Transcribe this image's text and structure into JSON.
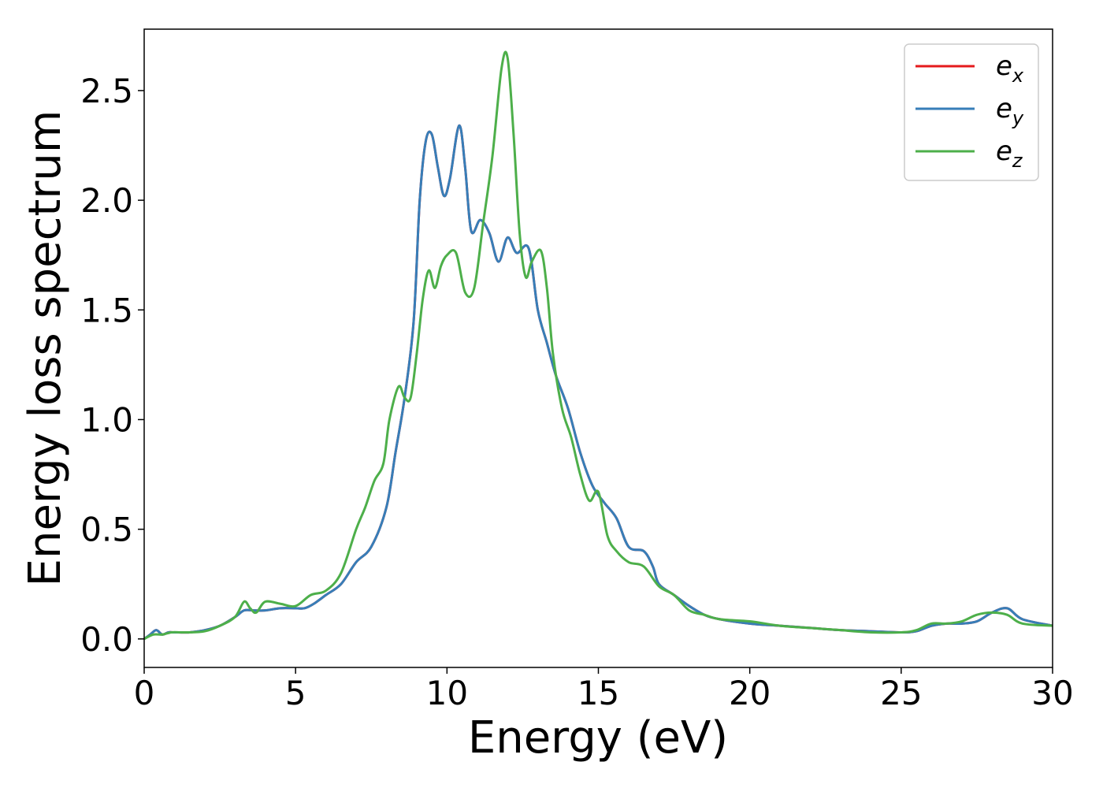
{
  "chart_data": {
    "type": "line",
    "title": "",
    "xlabel": "Energy (eV)",
    "ylabel": "Energy loss spectrum",
    "xlim": [
      0,
      30
    ],
    "ylim": [
      -0.13,
      2.78
    ],
    "xticks": [
      0,
      5,
      10,
      15,
      20,
      25,
      30
    ],
    "yticks": [
      0.0,
      0.5,
      1.0,
      1.5,
      2.0,
      2.5
    ],
    "grid": false,
    "legend_position": "top-right",
    "series": [
      {
        "name": "e",
        "name_sub": "x",
        "color": "#e41a1c",
        "x": [
          0,
          0.2,
          0.4,
          0.6,
          0.8,
          1,
          1.5,
          2,
          2.5,
          3,
          3.3,
          3.6,
          4,
          4.5,
          5,
          5.3,
          5.6,
          6,
          6.5,
          7,
          7.5,
          8,
          8.3,
          8.6,
          8.9,
          9.1,
          9.3,
          9.5,
          9.7,
          9.9,
          10.1,
          10.4,
          10.6,
          10.8,
          11.1,
          11.4,
          11.7,
          12,
          12.3,
          12.7,
          13,
          13.3,
          13.6,
          14,
          14.4,
          14.8,
          15.2,
          15.6,
          16,
          16.5,
          16.8,
          17,
          17.5,
          18,
          18.5,
          19,
          20,
          21,
          22,
          23,
          24,
          25,
          25.5,
          26,
          26.5,
          27,
          27.5,
          28,
          28.5,
          29,
          30
        ],
        "y": [
          0,
          0.02,
          0.04,
          0.02,
          0.03,
          0.03,
          0.03,
          0.04,
          0.06,
          0.1,
          0.13,
          0.13,
          0.13,
          0.14,
          0.14,
          0.14,
          0.16,
          0.2,
          0.25,
          0.35,
          0.42,
          0.6,
          0.85,
          1.1,
          1.45,
          2.0,
          2.27,
          2.3,
          2.15,
          2.02,
          2.1,
          2.34,
          2.15,
          1.86,
          1.91,
          1.85,
          1.72,
          1.83,
          1.76,
          1.78,
          1.5,
          1.35,
          1.2,
          1.05,
          0.85,
          0.7,
          0.62,
          0.55,
          0.42,
          0.4,
          0.33,
          0.25,
          0.2,
          0.15,
          0.11,
          0.09,
          0.07,
          0.06,
          0.05,
          0.04,
          0.035,
          0.03,
          0.035,
          0.06,
          0.07,
          0.07,
          0.08,
          0.12,
          0.14,
          0.09,
          0.06
        ]
      },
      {
        "name": "e",
        "name_sub": "y",
        "color": "#377eb8",
        "x": [
          0,
          0.2,
          0.4,
          0.6,
          0.8,
          1,
          1.5,
          2,
          2.5,
          3,
          3.3,
          3.6,
          4,
          4.5,
          5,
          5.3,
          5.6,
          6,
          6.5,
          7,
          7.5,
          8,
          8.3,
          8.6,
          8.9,
          9.1,
          9.3,
          9.5,
          9.7,
          9.9,
          10.1,
          10.4,
          10.6,
          10.8,
          11.1,
          11.4,
          11.7,
          12,
          12.3,
          12.7,
          13,
          13.3,
          13.6,
          14,
          14.4,
          14.8,
          15.2,
          15.6,
          16,
          16.5,
          16.8,
          17,
          17.5,
          18,
          18.5,
          19,
          20,
          21,
          22,
          23,
          24,
          25,
          25.5,
          26,
          26.5,
          27,
          27.5,
          28,
          28.5,
          29,
          30
        ],
        "y": [
          0,
          0.02,
          0.04,
          0.02,
          0.03,
          0.03,
          0.03,
          0.04,
          0.06,
          0.1,
          0.13,
          0.13,
          0.13,
          0.14,
          0.14,
          0.14,
          0.16,
          0.2,
          0.25,
          0.35,
          0.42,
          0.6,
          0.85,
          1.1,
          1.45,
          2.0,
          2.27,
          2.3,
          2.15,
          2.02,
          2.1,
          2.34,
          2.15,
          1.86,
          1.91,
          1.85,
          1.72,
          1.83,
          1.76,
          1.78,
          1.5,
          1.35,
          1.2,
          1.05,
          0.85,
          0.7,
          0.62,
          0.55,
          0.42,
          0.4,
          0.33,
          0.25,
          0.2,
          0.15,
          0.11,
          0.09,
          0.07,
          0.06,
          0.05,
          0.04,
          0.035,
          0.03,
          0.035,
          0.06,
          0.07,
          0.07,
          0.08,
          0.12,
          0.14,
          0.09,
          0.06
        ]
      },
      {
        "name": "e",
        "name_sub": "z",
        "color": "#4daf4a",
        "x": [
          0,
          0.3,
          0.6,
          0.9,
          1.2,
          1.5,
          2,
          2.5,
          3,
          3.3,
          3.5,
          3.7,
          4,
          4.5,
          5,
          5.5,
          6,
          6.5,
          7,
          7.3,
          7.6,
          7.9,
          8.1,
          8.4,
          8.6,
          8.8,
          9,
          9.2,
          9.4,
          9.6,
          9.8,
          10,
          10.3,
          10.6,
          10.9,
          11.2,
          11.5,
          11.8,
          12,
          12.2,
          12.4,
          12.6,
          12.8,
          13.1,
          13.3,
          13.5,
          13.8,
          14.1,
          14.4,
          14.7,
          15,
          15.3,
          15.6,
          16,
          16.5,
          17,
          17.5,
          18,
          18.5,
          19,
          20,
          21,
          22,
          23,
          24,
          25,
          25.5,
          26,
          26.5,
          27,
          27.5,
          28,
          28.5,
          29,
          30
        ],
        "y": [
          0,
          0.02,
          0.02,
          0.03,
          0.03,
          0.03,
          0.035,
          0.06,
          0.1,
          0.17,
          0.14,
          0.12,
          0.17,
          0.16,
          0.15,
          0.2,
          0.22,
          0.3,
          0.5,
          0.6,
          0.72,
          0.8,
          1.0,
          1.15,
          1.1,
          1.1,
          1.3,
          1.55,
          1.68,
          1.6,
          1.7,
          1.75,
          1.76,
          1.58,
          1.6,
          1.9,
          2.2,
          2.6,
          2.65,
          2.3,
          1.85,
          1.65,
          1.72,
          1.77,
          1.6,
          1.3,
          1.05,
          0.92,
          0.75,
          0.63,
          0.67,
          0.47,
          0.4,
          0.35,
          0.33,
          0.24,
          0.2,
          0.13,
          0.11,
          0.09,
          0.08,
          0.06,
          0.05,
          0.04,
          0.03,
          0.03,
          0.04,
          0.07,
          0.07,
          0.08,
          0.11,
          0.12,
          0.11,
          0.07,
          0.06
        ]
      }
    ]
  }
}
